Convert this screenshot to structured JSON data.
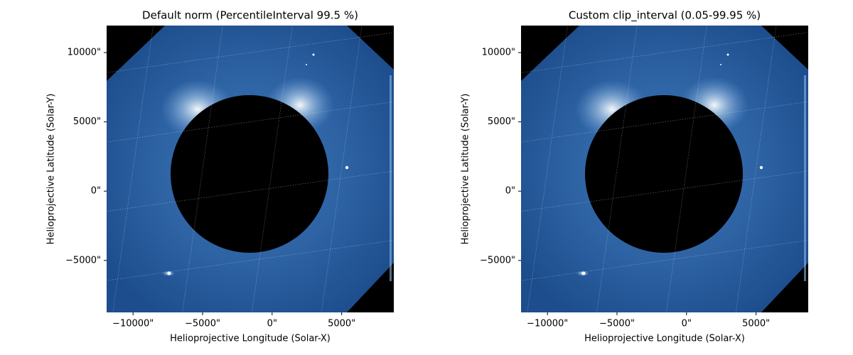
{
  "chart_data": [
    {
      "type": "image",
      "title": "Default norm (PercentileInterval 99.5 %)",
      "xlabel": "Helioprojective Longitude (Solar-X)",
      "ylabel": "Helioprojective Latitude (Solar-Y)",
      "xlim": [
        -11900,
        8750
      ],
      "ylim": [
        -8750,
        11950
      ],
      "xticks": [
        {
          "value": -10000,
          "label": "−10000\""
        },
        {
          "value": -5000,
          "label": "−5000\""
        },
        {
          "value": 0,
          "label": "0\""
        },
        {
          "value": 5000,
          "label": "5000\""
        }
      ],
      "yticks": [
        {
          "value": -5000,
          "label": "−5000\""
        },
        {
          "value": 0,
          "label": "0\""
        },
        {
          "value": 5000,
          "label": "5000\""
        },
        {
          "value": 10000,
          "label": "10000\""
        }
      ],
      "grid": true
    },
    {
      "type": "image",
      "title": "Custom clip_interval (0.05-99.95 %)",
      "xlabel": "Helioprojective Longitude (Solar-X)",
      "ylabel": "Helioprojective Latitude (Solar-Y)",
      "xlim": [
        -11900,
        8750
      ],
      "ylim": [
        -8750,
        11950
      ],
      "xticks": [
        {
          "value": -10000,
          "label": "−10000\""
        },
        {
          "value": -5000,
          "label": "−5000\""
        },
        {
          "value": 0,
          "label": "0\""
        },
        {
          "value": 5000,
          "label": "5000\""
        }
      ],
      "yticks": [
        {
          "value": -5000,
          "label": "−5000\""
        },
        {
          "value": 0,
          "label": "0\""
        },
        {
          "value": 5000,
          "label": "5000\""
        },
        {
          "value": 10000,
          "label": "10000\""
        }
      ],
      "grid": true
    }
  ]
}
